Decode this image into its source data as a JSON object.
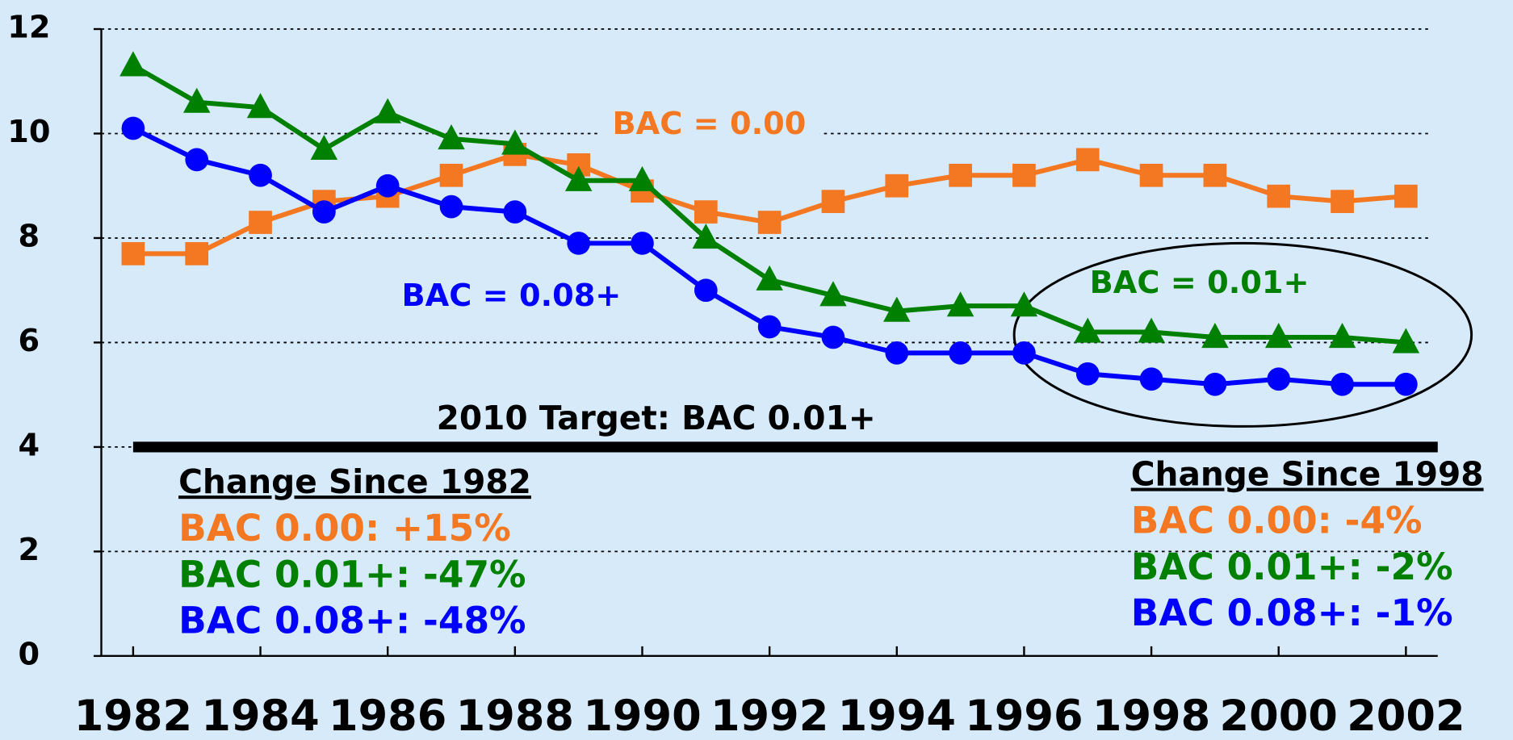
{
  "chart_data": {
    "type": "line",
    "x": [
      1982,
      1983,
      1984,
      1985,
      1986,
      1987,
      1988,
      1989,
      1990,
      1991,
      1992,
      1993,
      1994,
      1995,
      1996,
      1997,
      1998,
      1999,
      2000,
      2001,
      2002
    ],
    "series": [
      {
        "name": "BAC = 0.00",
        "color": "#f47721",
        "marker": "square",
        "values": [
          7.7,
          7.7,
          8.3,
          8.7,
          8.8,
          9.2,
          9.6,
          9.4,
          8.9,
          8.5,
          8.3,
          8.7,
          9.0,
          9.2,
          9.2,
          9.5,
          9.2,
          9.2,
          8.8,
          8.7,
          8.8
        ]
      },
      {
        "name": "BAC = 0.01+",
        "color": "#008000",
        "marker": "triangle",
        "values": [
          11.3,
          10.6,
          10.5,
          9.7,
          10.4,
          9.9,
          9.8,
          9.1,
          9.1,
          8.0,
          7.2,
          6.9,
          6.6,
          6.7,
          6.7,
          6.2,
          6.2,
          6.1,
          6.1,
          6.1,
          6.0
        ]
      },
      {
        "name": "BAC = 0.08+",
        "color": "#0000ff",
        "marker": "circle",
        "values": [
          10.1,
          9.5,
          9.2,
          8.5,
          9.0,
          8.6,
          8.5,
          7.9,
          7.9,
          7.0,
          6.3,
          6.1,
          5.8,
          5.8,
          5.8,
          5.4,
          5.3,
          5.2,
          5.3,
          5.2,
          5.2
        ]
      }
    ],
    "xlim": [
      1981.5,
      2002.5
    ],
    "xticks": [
      1982,
      1984,
      1986,
      1988,
      1990,
      1992,
      1994,
      1996,
      1998,
      2000,
      2002
    ],
    "ylim": [
      0,
      12
    ],
    "yticks": [
      0,
      2,
      4,
      6,
      8,
      10,
      12
    ],
    "grid": true,
    "target": {
      "value": 4,
      "label": "2010 Target: BAC 0.01+"
    },
    "change_1982": {
      "title": "Change Since 1982",
      "lines": [
        "BAC 0.00: +15%",
        "BAC 0.01+: -47%",
        "BAC 0.08+: -48%"
      ]
    },
    "change_1998": {
      "title": "Change Since 1998",
      "lines": [
        "BAC 0.00: -4%",
        "BAC 0.01+: -2%",
        "BAC 0.08+: -1%"
      ]
    }
  }
}
